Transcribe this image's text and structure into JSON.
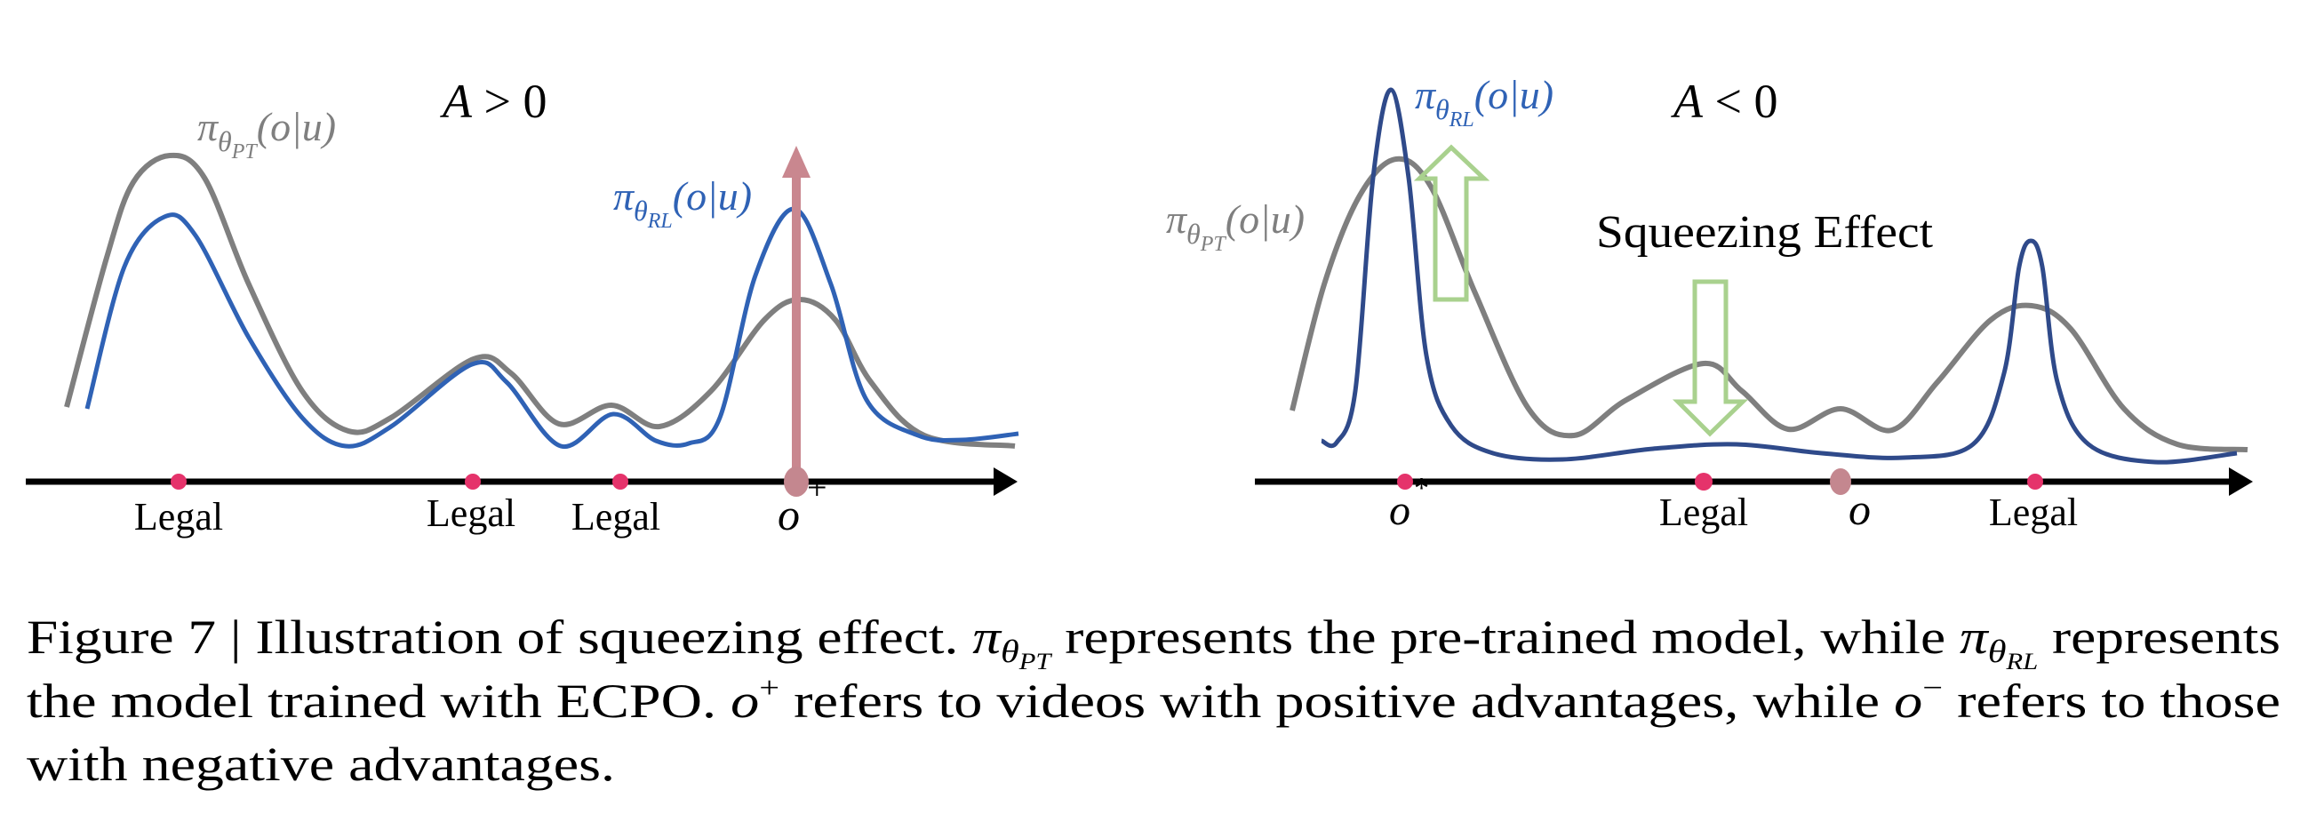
{
  "colors": {
    "pretrained": "#7f7f7f",
    "rl_left": "#2f62b5",
    "rl_right": "#2f4a8a",
    "legal_dot": "#e5336b",
    "target_dot": "#c4878f",
    "arrow_red": "#c9878f",
    "arrow_green": "#a9d18e"
  },
  "left_panel": {
    "title": {
      "A": "A",
      "op": " > ",
      "zero": "0"
    },
    "pt_label": {
      "pi": "π",
      "theta": "θ",
      "sub": "PT",
      "arg": "(o|u)"
    },
    "rl_label": {
      "pi": "π",
      "theta": "θ",
      "sub": "RL",
      "arg": "(o|u)"
    },
    "points": [
      {
        "label": "Legal"
      },
      {
        "label": "Legal"
      },
      {
        "label": "Legal"
      },
      {
        "label": "o",
        "sup": "+"
      }
    ]
  },
  "right_panel": {
    "title": {
      "A": "A",
      "op": " < ",
      "zero": "0"
    },
    "pt_label": {
      "pi": "π",
      "theta": "θ",
      "sub": "PT",
      "arg": "(o|u)"
    },
    "rl_label": {
      "pi": "π",
      "theta": "θ",
      "sub": "RL",
      "arg": "(o|u)"
    },
    "annotation": "Squeezing Effect",
    "points": [
      {
        "label": "o",
        "sup": "*"
      },
      {
        "label": "Legal"
      },
      {
        "label": "o",
        "sup": "−"
      },
      {
        "label": "Legal"
      }
    ]
  },
  "caption": {
    "l1a": "Figure 7 | Illustration of squeezing effect. ",
    "pi": "π",
    "theta": "θ",
    "pt": "PT",
    "l1b": " represents the pre-trained model, while ",
    "rl": "RL",
    "l1c": " represents",
    "l2a": "the model trained with ECPO. ",
    "o": "o",
    "plus": "+",
    "l2b": " refers to videos with positive advantages, while ",
    "minus": "−",
    "l2c": " refers to those",
    "l3": "with negative advantages."
  }
}
